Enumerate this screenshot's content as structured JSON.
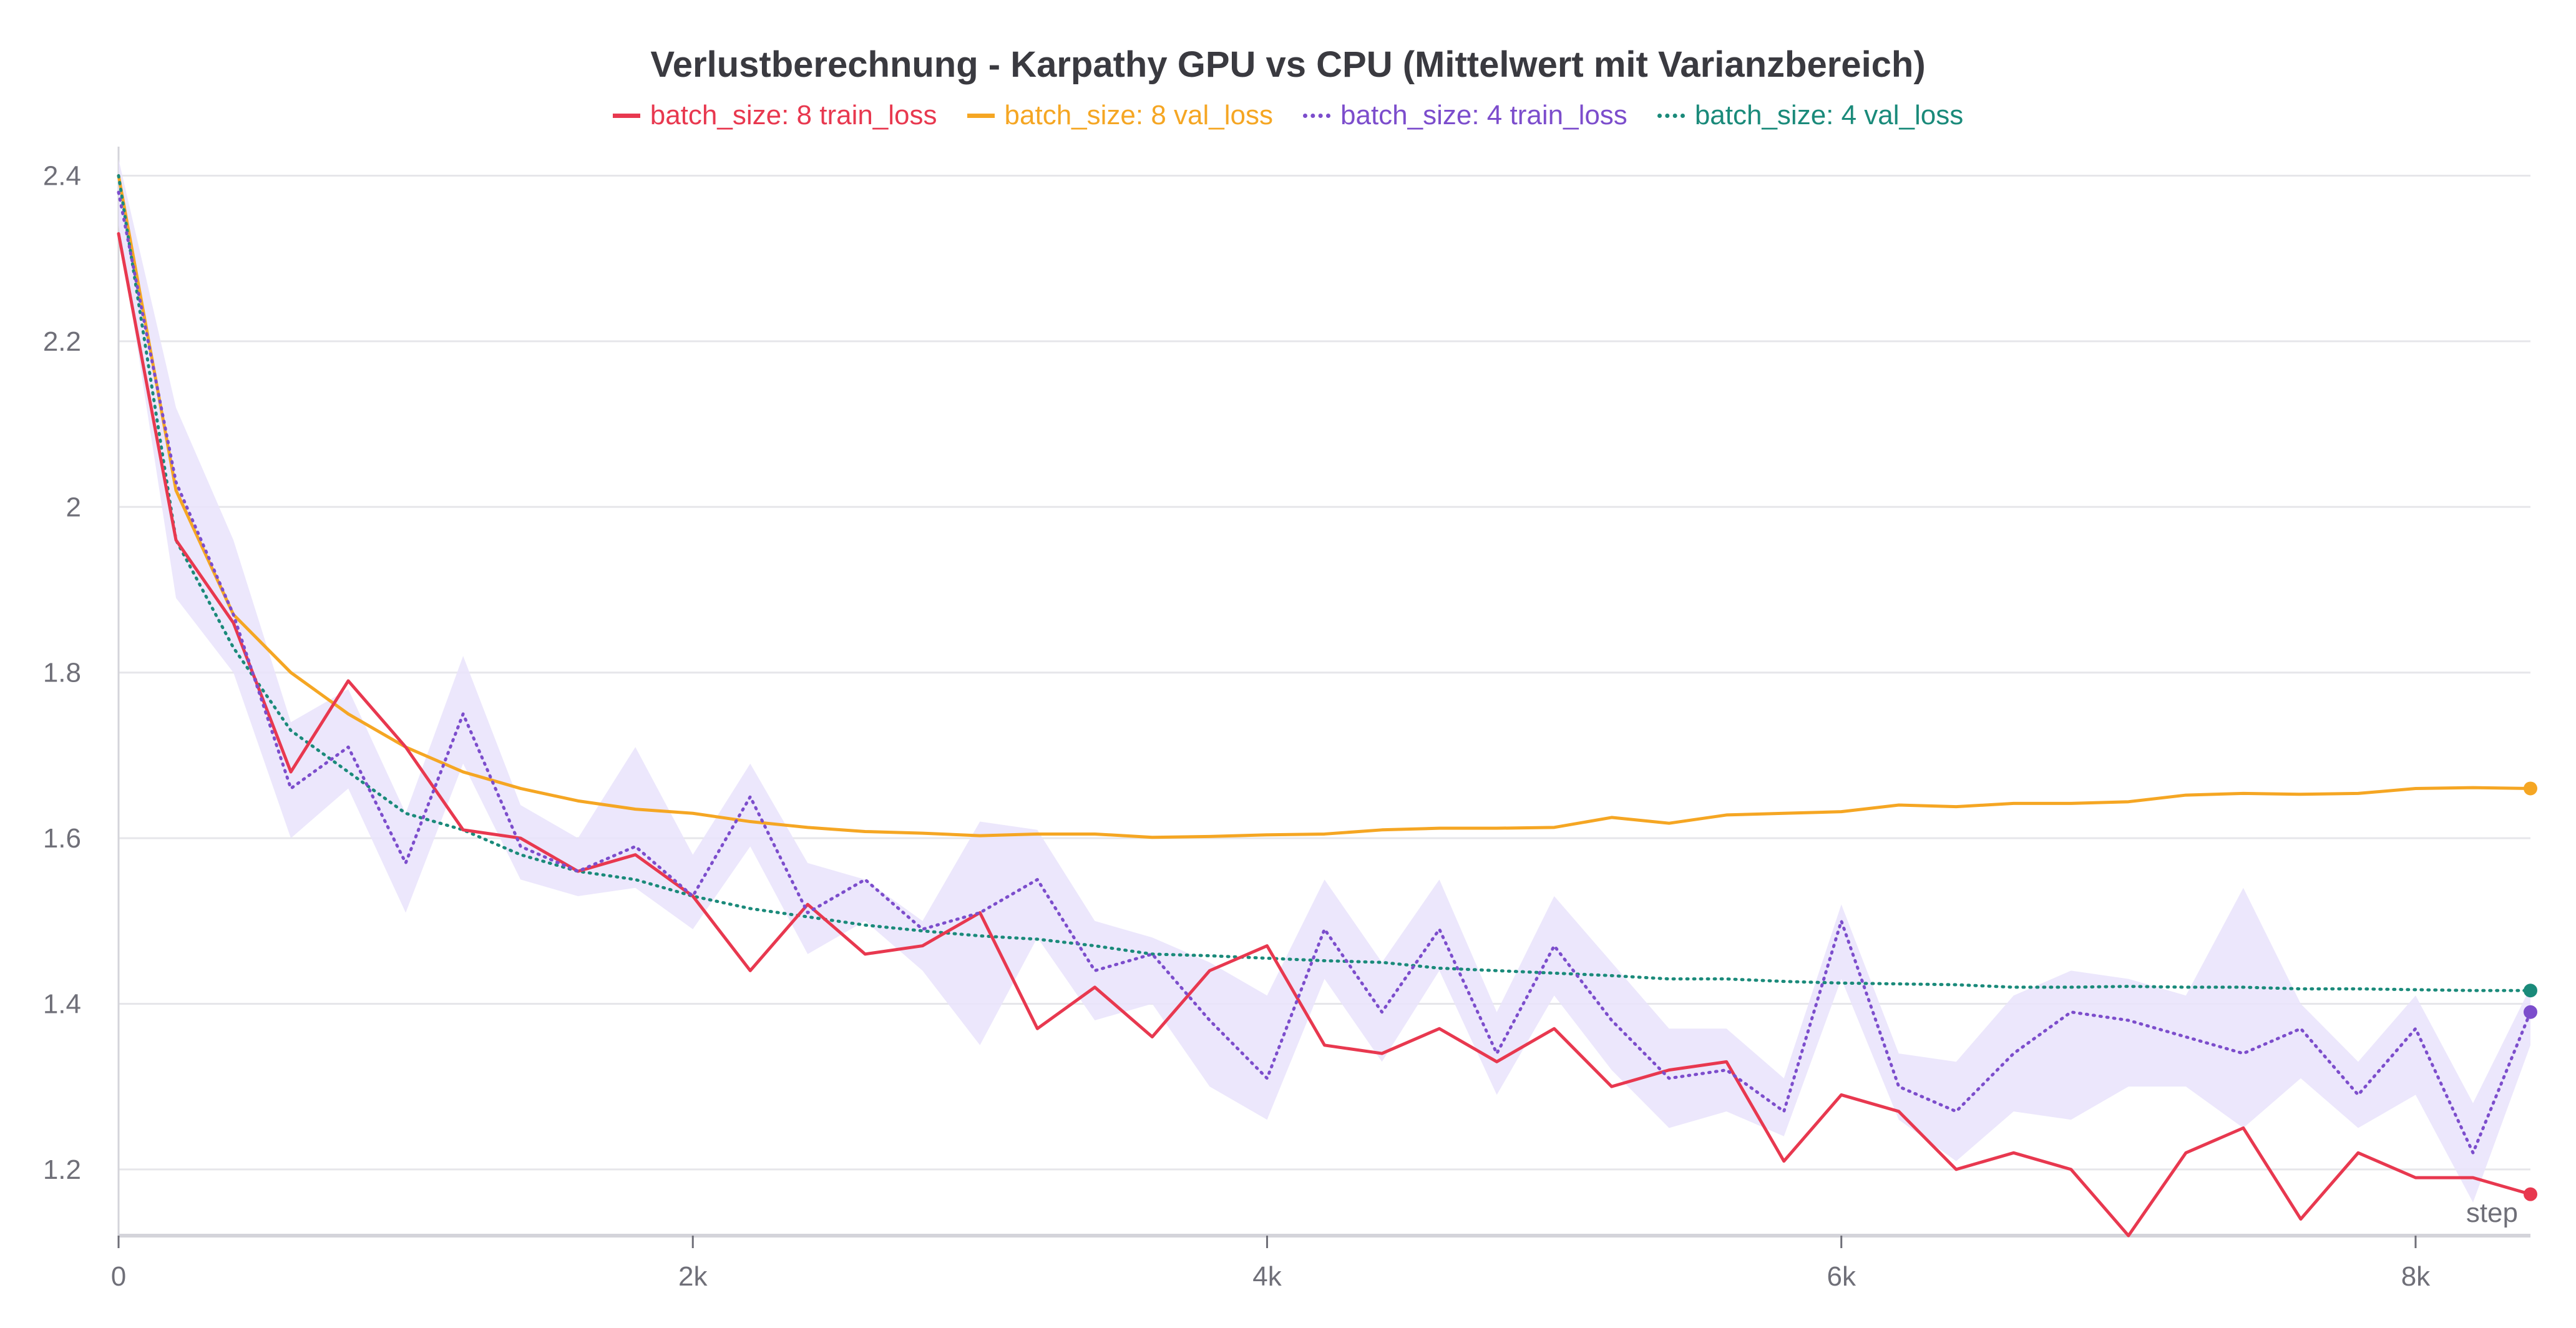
{
  "chart_data": {
    "type": "line",
    "title": "Verlustberechnung - Karpathy GPU vs CPU (Mittelwert mit Varianzbereich)",
    "xlabel": "step",
    "ylabel": "",
    "xlim": [
      0,
      8400
    ],
    "ylim": [
      1.12,
      2.42
    ],
    "x_ticks": [
      0,
      2000,
      4000,
      6000,
      8000
    ],
    "x_tick_labels": [
      "0",
      "2k",
      "4k",
      "6k",
      "8k"
    ],
    "y_ticks": [
      1.2,
      1.4,
      1.6,
      1.8,
      2.0,
      2.2,
      2.4
    ],
    "y_tick_labels": [
      "1.2",
      "1.4",
      "1.6",
      "1.8",
      "2",
      "2.2",
      "2.4"
    ],
    "grid": "horizontal",
    "legend_position": "top-center",
    "series": [
      {
        "name": "batch_size: 8 train_loss",
        "color": "#e8384f",
        "style": "solid",
        "x": [
          0,
          200,
          400,
          600,
          800,
          1000,
          1200,
          1400,
          1600,
          1800,
          2000,
          2200,
          2400,
          2600,
          2800,
          3000,
          3200,
          3400,
          3600,
          3800,
          4000,
          4200,
          4400,
          4600,
          4800,
          5000,
          5200,
          5400,
          5600,
          5800,
          6000,
          6200,
          6400,
          6600,
          6800,
          7000,
          7200,
          7400,
          7600,
          7800,
          8000,
          8200,
          8400
        ],
        "y": [
          2.33,
          1.96,
          1.86,
          1.68,
          1.79,
          1.71,
          1.61,
          1.6,
          1.56,
          1.58,
          1.53,
          1.44,
          1.52,
          1.46,
          1.47,
          1.51,
          1.37,
          1.42,
          1.36,
          1.44,
          1.47,
          1.35,
          1.34,
          1.37,
          1.33,
          1.37,
          1.3,
          1.32,
          1.33,
          1.21,
          1.29,
          1.27,
          1.2,
          1.22,
          1.2,
          1.12,
          1.22,
          1.25,
          1.14,
          1.22,
          1.19,
          1.19,
          1.17
        ]
      },
      {
        "name": "batch_size: 8 val_loss",
        "color": "#f5a623",
        "style": "solid",
        "x": [
          0,
          200,
          400,
          600,
          800,
          1000,
          1200,
          1400,
          1600,
          1800,
          2000,
          2200,
          2400,
          2600,
          2800,
          3000,
          3200,
          3400,
          3600,
          3800,
          4000,
          4200,
          4400,
          4600,
          4800,
          5000,
          5200,
          5400,
          5600,
          5800,
          6000,
          6200,
          6400,
          6600,
          6800,
          7000,
          7200,
          7400,
          7600,
          7800,
          8000,
          8200,
          8400
        ],
        "y": [
          2.4,
          2.02,
          1.87,
          1.8,
          1.75,
          1.71,
          1.68,
          1.66,
          1.645,
          1.635,
          1.63,
          1.62,
          1.613,
          1.608,
          1.606,
          1.603,
          1.605,
          1.605,
          1.601,
          1.602,
          1.604,
          1.605,
          1.61,
          1.612,
          1.612,
          1.613,
          1.625,
          1.618,
          1.628,
          1.63,
          1.632,
          1.64,
          1.638,
          1.642,
          1.642,
          1.644,
          1.652,
          1.654,
          1.653,
          1.654,
          1.66,
          1.661,
          1.66
        ]
      },
      {
        "name": "batch_size: 4 train_loss",
        "color": "#7c4dcc",
        "style": "dotted",
        "band_color": "#e9e3fb",
        "x": [
          0,
          200,
          400,
          600,
          800,
          1000,
          1200,
          1400,
          1600,
          1800,
          2000,
          2200,
          2400,
          2600,
          2800,
          3000,
          3200,
          3400,
          3600,
          3800,
          4000,
          4200,
          4400,
          4600,
          4800,
          5000,
          5200,
          5400,
          5600,
          5800,
          6000,
          6200,
          6400,
          6600,
          6800,
          7000,
          7200,
          7400,
          7600,
          7800,
          8000,
          8200,
          8400
        ],
        "y": [
          2.38,
          2.03,
          1.87,
          1.66,
          1.71,
          1.57,
          1.75,
          1.59,
          1.56,
          1.59,
          1.53,
          1.65,
          1.51,
          1.55,
          1.49,
          1.51,
          1.55,
          1.44,
          1.46,
          1.38,
          1.31,
          1.49,
          1.39,
          1.49,
          1.34,
          1.47,
          1.38,
          1.31,
          1.32,
          1.27,
          1.5,
          1.3,
          1.27,
          1.34,
          1.39,
          1.38,
          1.36,
          1.34,
          1.37,
          1.29,
          1.37,
          1.22,
          1.39
        ],
        "y_lower": [
          2.34,
          1.89,
          1.8,
          1.6,
          1.66,
          1.51,
          1.69,
          1.55,
          1.53,
          1.54,
          1.49,
          1.59,
          1.46,
          1.5,
          1.44,
          1.35,
          1.48,
          1.38,
          1.4,
          1.3,
          1.26,
          1.43,
          1.33,
          1.44,
          1.29,
          1.41,
          1.32,
          1.25,
          1.27,
          1.24,
          1.43,
          1.26,
          1.21,
          1.27,
          1.26,
          1.3,
          1.3,
          1.25,
          1.31,
          1.25,
          1.29,
          1.16,
          1.35
        ],
        "y_upper": [
          2.42,
          2.12,
          1.96,
          1.74,
          1.78,
          1.63,
          1.82,
          1.64,
          1.6,
          1.71,
          1.58,
          1.69,
          1.57,
          1.55,
          1.5,
          1.62,
          1.61,
          1.5,
          1.48,
          1.45,
          1.41,
          1.55,
          1.45,
          1.55,
          1.39,
          1.53,
          1.45,
          1.37,
          1.37,
          1.31,
          1.52,
          1.34,
          1.33,
          1.41,
          1.44,
          1.43,
          1.41,
          1.54,
          1.4,
          1.33,
          1.41,
          1.28,
          1.42
        ]
      },
      {
        "name": "batch_size: 4 val_loss",
        "color": "#1a8a7a",
        "style": "dotted",
        "x": [
          0,
          200,
          400,
          600,
          800,
          1000,
          1200,
          1400,
          1600,
          1800,
          2000,
          2200,
          2400,
          2600,
          2800,
          3000,
          3200,
          3400,
          3600,
          3800,
          4000,
          4200,
          4400,
          4600,
          4800,
          5000,
          5200,
          5400,
          5600,
          5800,
          6000,
          6200,
          6400,
          6600,
          6800,
          7000,
          7200,
          7400,
          7600,
          7800,
          8000,
          8200,
          8400
        ],
        "y": [
          2.4,
          1.96,
          1.83,
          1.73,
          1.68,
          1.63,
          1.61,
          1.58,
          1.56,
          1.55,
          1.53,
          1.515,
          1.505,
          1.495,
          1.488,
          1.482,
          1.478,
          1.47,
          1.46,
          1.458,
          1.455,
          1.452,
          1.45,
          1.443,
          1.44,
          1.437,
          1.434,
          1.43,
          1.43,
          1.427,
          1.425,
          1.424,
          1.423,
          1.42,
          1.42,
          1.421,
          1.42,
          1.42,
          1.418,
          1.418,
          1.417,
          1.416,
          1.416
        ]
      }
    ]
  }
}
